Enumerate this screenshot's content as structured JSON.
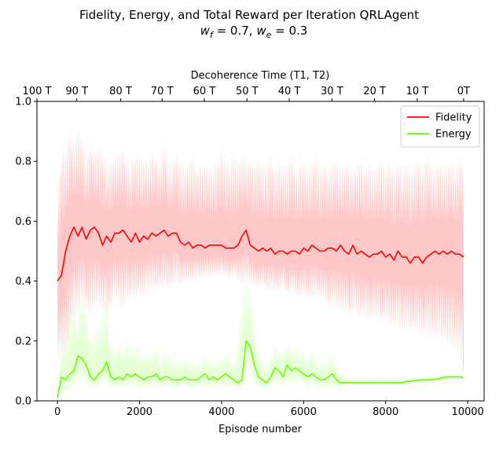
{
  "chart_data": {
    "type": "line",
    "title": "Fidelity, Energy, and Total Reward per Iteration QRLAgent",
    "subtitle": {
      "parts": [
        {
          "t": "w",
          "i": true
        },
        {
          "t": "f",
          "sub": true
        },
        {
          "t": " = 0.7, "
        },
        {
          "t": "w",
          "i": true
        },
        {
          "t": "e",
          "sub": true
        },
        {
          "t": " = 0.3"
        }
      ]
    },
    "xlabel": "Episode number",
    "xlim": [
      -500,
      10400
    ],
    "xticks": [
      0,
      2000,
      4000,
      6000,
      8000,
      10000
    ],
    "ylim": [
      0,
      1.0
    ],
    "yticks": [
      0.0,
      0.2,
      0.4,
      0.6,
      0.8,
      1.0
    ],
    "grid": false,
    "legend_position": "top-right",
    "top_axis": {
      "label": "Decoherence Time (T1, T2)",
      "ticks": [
        {
          "x": -500,
          "label": "100 T"
        },
        {
          "x": 470,
          "label": "90 T"
        },
        {
          "x": 1540,
          "label": "80 T"
        },
        {
          "x": 2550,
          "label": "70 T"
        },
        {
          "x": 3580,
          "label": "60 T"
        },
        {
          "x": 4620,
          "label": "50 T"
        },
        {
          "x": 5650,
          "label": "40 T"
        },
        {
          "x": 6690,
          "label": "30 T"
        },
        {
          "x": 7730,
          "label": "20 T"
        },
        {
          "x": 8770,
          "label": "10 T"
        },
        {
          "x": 9900,
          "label": "0T"
        }
      ]
    },
    "series": [
      {
        "name": "Fidelity",
        "color": "#ff0000",
        "band_color": "#ffc8c8",
        "x": [
          0,
          100,
          200,
          300,
          400,
          500,
          600,
          700,
          800,
          900,
          1000,
          1100,
          1200,
          1300,
          1400,
          1500,
          1600,
          1700,
          1800,
          1900,
          2000,
          2100,
          2200,
          2300,
          2400,
          2500,
          2600,
          2700,
          2800,
          2900,
          3000,
          3100,
          3200,
          3300,
          3400,
          3500,
          3600,
          3700,
          3800,
          3900,
          4000,
          4100,
          4200,
          4300,
          4400,
          4500,
          4600,
          4700,
          4800,
          4900,
          5000,
          5100,
          5200,
          5300,
          5400,
          5500,
          5600,
          5700,
          5800,
          5900,
          6000,
          6100,
          6200,
          6300,
          6400,
          6500,
          6600,
          6700,
          6800,
          6900,
          7000,
          7100,
          7200,
          7300,
          7400,
          7500,
          7600,
          7700,
          7800,
          7900,
          8000,
          8100,
          8200,
          8300,
          8400,
          8500,
          8600,
          8700,
          8800,
          8900,
          9000,
          9100,
          9200,
          9300,
          9400,
          9500,
          9600,
          9700,
          9800,
          9900
        ],
        "values": [
          0.4,
          0.42,
          0.5,
          0.55,
          0.58,
          0.55,
          0.58,
          0.54,
          0.57,
          0.58,
          0.56,
          0.52,
          0.55,
          0.53,
          0.56,
          0.56,
          0.57,
          0.55,
          0.53,
          0.56,
          0.53,
          0.55,
          0.54,
          0.56,
          0.55,
          0.56,
          0.57,
          0.55,
          0.56,
          0.56,
          0.53,
          0.52,
          0.53,
          0.51,
          0.52,
          0.52,
          0.51,
          0.52,
          0.52,
          0.52,
          0.52,
          0.51,
          0.51,
          0.51,
          0.52,
          0.55,
          0.57,
          0.52,
          0.51,
          0.5,
          0.51,
          0.5,
          0.51,
          0.49,
          0.5,
          0.5,
          0.49,
          0.5,
          0.5,
          0.49,
          0.51,
          0.5,
          0.52,
          0.51,
          0.5,
          0.5,
          0.51,
          0.51,
          0.5,
          0.52,
          0.5,
          0.49,
          0.52,
          0.49,
          0.5,
          0.49,
          0.48,
          0.49,
          0.49,
          0.5,
          0.48,
          0.49,
          0.47,
          0.5,
          0.48,
          0.48,
          0.46,
          0.48,
          0.48,
          0.46,
          0.48,
          0.49,
          0.5,
          0.49,
          0.5,
          0.49,
          0.5,
          0.49,
          0.49,
          0.48
        ],
        "band_upper": [
          0.66,
          0.85,
          0.84,
          0.91,
          0.86,
          0.93,
          0.88,
          0.82,
          0.87,
          0.83,
          0.86,
          0.84,
          0.8,
          0.81,
          0.82,
          0.84,
          0.85,
          0.8,
          0.81,
          0.83,
          0.84,
          0.8,
          0.81,
          0.84,
          0.82,
          0.8,
          0.87,
          0.79,
          0.81,
          0.83,
          0.8,
          0.79,
          0.8,
          0.83,
          0.78,
          0.8,
          0.81,
          0.78,
          0.79,
          0.81,
          0.85,
          0.82,
          0.79,
          0.84,
          0.8,
          0.83,
          0.82,
          0.8,
          0.81,
          0.82,
          0.79,
          0.8,
          0.83,
          0.78,
          0.81,
          0.79,
          0.8,
          0.84,
          0.78,
          0.8,
          0.81,
          0.79,
          0.8,
          0.83,
          0.79,
          0.81,
          0.78,
          0.8,
          0.82,
          0.79,
          0.8,
          0.81,
          0.78,
          0.8,
          0.82,
          0.79,
          0.81,
          0.78,
          0.8,
          0.82,
          0.79,
          0.81,
          0.78,
          0.8,
          0.79,
          0.81,
          0.78,
          0.8,
          0.82,
          0.79,
          0.84,
          0.8,
          0.78,
          0.81,
          0.79,
          0.8,
          0.81,
          0.79,
          0.82,
          0.79
        ],
        "band_lower": [
          0.12,
          0.15,
          0.16,
          0.2,
          0.28,
          0.3,
          0.32,
          0.3,
          0.28,
          0.3,
          0.32,
          0.3,
          0.28,
          0.3,
          0.33,
          0.32,
          0.3,
          0.33,
          0.34,
          0.33,
          0.35,
          0.34,
          0.36,
          0.37,
          0.36,
          0.37,
          0.38,
          0.37,
          0.38,
          0.4,
          0.38,
          0.4,
          0.39,
          0.4,
          0.41,
          0.4,
          0.42,
          0.41,
          0.42,
          0.41,
          0.42,
          0.41,
          0.4,
          0.42,
          0.4,
          0.38,
          0.4,
          0.39,
          0.38,
          0.37,
          0.38,
          0.37,
          0.36,
          0.37,
          0.36,
          0.38,
          0.35,
          0.36,
          0.35,
          0.34,
          0.35,
          0.34,
          0.33,
          0.35,
          0.34,
          0.33,
          0.3,
          0.32,
          0.31,
          0.3,
          0.29,
          0.28,
          0.29,
          0.28,
          0.27,
          0.28,
          0.26,
          0.27,
          0.26,
          0.25,
          0.26,
          0.24,
          0.25,
          0.24,
          0.23,
          0.24,
          0.22,
          0.23,
          0.22,
          0.21,
          0.22,
          0.2,
          0.21,
          0.2,
          0.19,
          0.18,
          0.17,
          0.16,
          0.15,
          0.1
        ]
      },
      {
        "name": "Energy",
        "color": "#66ff00",
        "band_color": "#e6ffd6",
        "x": [
          0,
          100,
          200,
          300,
          400,
          500,
          600,
          700,
          800,
          900,
          1000,
          1100,
          1200,
          1300,
          1400,
          1500,
          1600,
          1700,
          1800,
          1900,
          2000,
          2100,
          2200,
          2300,
          2400,
          2500,
          2600,
          2700,
          2800,
          2900,
          3000,
          3100,
          3200,
          3300,
          3400,
          3500,
          3600,
          3700,
          3800,
          3900,
          4000,
          4100,
          4200,
          4300,
          4400,
          4500,
          4600,
          4700,
          4800,
          4900,
          5000,
          5100,
          5200,
          5300,
          5400,
          5500,
          5600,
          5700,
          5800,
          5900,
          6000,
          6100,
          6200,
          6300,
          6400,
          6500,
          6600,
          6700,
          6800,
          6900,
          7000,
          7100,
          7200,
          7300,
          7400,
          7500,
          7600,
          7700,
          7800,
          7900,
          8000,
          8100,
          8200,
          8300,
          8400,
          8500,
          8600,
          8700,
          8800,
          8900,
          9000,
          9100,
          9200,
          9300,
          9400,
          9500,
          9600,
          9700,
          9800,
          9900
        ],
        "values": [
          0.01,
          0.08,
          0.07,
          0.09,
          0.1,
          0.15,
          0.14,
          0.12,
          0.08,
          0.07,
          0.09,
          0.1,
          0.13,
          0.08,
          0.07,
          0.08,
          0.07,
          0.09,
          0.08,
          0.09,
          0.08,
          0.07,
          0.08,
          0.08,
          0.09,
          0.07,
          0.08,
          0.08,
          0.07,
          0.07,
          0.07,
          0.08,
          0.07,
          0.07,
          0.07,
          0.08,
          0.09,
          0.07,
          0.08,
          0.07,
          0.08,
          0.09,
          0.08,
          0.07,
          0.06,
          0.07,
          0.2,
          0.18,
          0.12,
          0.08,
          0.07,
          0.06,
          0.08,
          0.11,
          0.1,
          0.08,
          0.12,
          0.1,
          0.11,
          0.1,
          0.09,
          0.08,
          0.09,
          0.08,
          0.07,
          0.07,
          0.08,
          0.09,
          0.07,
          0.06,
          0.06,
          0.06,
          0.06,
          0.06,
          0.06,
          0.06,
          0.06,
          0.06,
          0.06,
          0.06,
          0.06,
          0.06,
          0.06,
          0.06,
          0.06,
          0.065,
          0.065,
          0.068,
          0.068,
          0.07,
          0.07,
          0.07,
          0.072,
          0.074,
          0.078,
          0.08,
          0.08,
          0.08,
          0.08,
          0.078
        ],
        "band_upper": [
          0.05,
          0.2,
          0.24,
          0.3,
          0.35,
          0.3,
          0.38,
          0.34,
          0.22,
          0.24,
          0.28,
          0.3,
          0.37,
          0.2,
          0.18,
          0.22,
          0.17,
          0.22,
          0.18,
          0.2,
          0.19,
          0.16,
          0.18,
          0.17,
          0.2,
          0.15,
          0.17,
          0.16,
          0.15,
          0.14,
          0.14,
          0.15,
          0.14,
          0.14,
          0.13,
          0.15,
          0.17,
          0.13,
          0.15,
          0.14,
          0.15,
          0.17,
          0.15,
          0.13,
          0.2,
          0.38,
          0.43,
          0.38,
          0.25,
          0.17,
          0.14,
          0.13,
          0.15,
          0.2,
          0.18,
          0.16,
          0.2,
          0.18,
          0.19,
          0.18,
          0.17,
          0.16,
          0.17,
          0.15,
          0.14,
          0.13,
          0.15,
          0.16,
          0.12,
          0.1,
          0.09,
          0.08,
          0.07,
          0.07,
          0.07,
          0.07,
          0.07,
          0.07,
          0.07,
          0.07,
          0.07,
          0.07,
          0.07,
          0.07,
          0.07,
          0.075,
          0.075,
          0.078,
          0.078,
          0.08,
          0.08,
          0.08,
          0.082,
          0.084,
          0.088,
          0.09,
          0.09,
          0.09,
          0.09,
          0.088
        ],
        "band_lower": [
          0.0,
          0.02,
          0.02,
          0.03,
          0.04,
          0.05,
          0.05,
          0.05,
          0.04,
          0.04,
          0.04,
          0.05,
          0.05,
          0.04,
          0.04,
          0.04,
          0.04,
          0.04,
          0.04,
          0.04,
          0.04,
          0.04,
          0.04,
          0.04,
          0.04,
          0.04,
          0.04,
          0.04,
          0.04,
          0.04,
          0.04,
          0.04,
          0.04,
          0.04,
          0.04,
          0.04,
          0.04,
          0.04,
          0.04,
          0.04,
          0.04,
          0.04,
          0.04,
          0.04,
          0.04,
          0.05,
          0.1,
          0.08,
          0.05,
          0.04,
          0.04,
          0.04,
          0.04,
          0.05,
          0.05,
          0.04,
          0.05,
          0.05,
          0.05,
          0.05,
          0.05,
          0.04,
          0.05,
          0.04,
          0.04,
          0.04,
          0.04,
          0.04,
          0.04,
          0.04,
          0.05,
          0.05,
          0.05,
          0.05,
          0.05,
          0.05,
          0.05,
          0.05,
          0.05,
          0.05,
          0.05,
          0.05,
          0.05,
          0.05,
          0.05,
          0.055,
          0.055,
          0.058,
          0.058,
          0.06,
          0.06,
          0.06,
          0.062,
          0.064,
          0.068,
          0.07,
          0.07,
          0.07,
          0.07,
          0.068
        ]
      }
    ]
  }
}
